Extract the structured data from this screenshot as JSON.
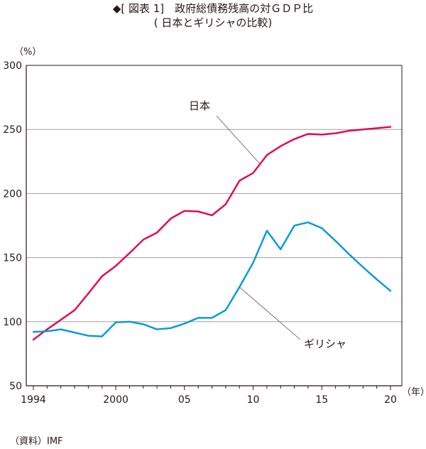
{
  "title": "◆[ 図表 1]　政府総債務残高の対ＧＤＰ比",
  "subtitle": "( 日本とギリシャの比較)",
  "source": "（資料）IMF",
  "chart_data": {
    "type": "line",
    "y_unit": "（%）",
    "x_unit": "（年）",
    "x_tick_labels": [
      "1994",
      "2000",
      "05",
      "10",
      "15",
      "20"
    ],
    "y_tick_labels": [
      "300",
      "250",
      "200",
      "150",
      "100",
      "50"
    ],
    "x_ticks": [
      1994,
      2000,
      2005,
      2010,
      2015,
      2020
    ],
    "y_ticks": [
      300,
      250,
      200,
      150,
      100,
      50
    ],
    "xlim": [
      1994,
      2020
    ],
    "ylim": [
      50,
      300
    ],
    "grid": true,
    "x": [
      1994,
      1995,
      1996,
      1997,
      1998,
      1999,
      2000,
      2001,
      2002,
      2003,
      2004,
      2005,
      2006,
      2007,
      2008,
      2009,
      2010,
      2011,
      2012,
      2013,
      2014,
      2015,
      2016,
      2017,
      2018,
      2019,
      2020
    ],
    "series": [
      {
        "name": "日本",
        "color": "#e5004f",
        "values": [
          86,
          94,
          101.5,
          109,
          122,
          135.5,
          143.5,
          153.5,
          164,
          169.5,
          180.5,
          186.5,
          186,
          183,
          191.5,
          210,
          216,
          230,
          237,
          242.5,
          246.5,
          246,
          247,
          249,
          250,
          251,
          252
        ]
      },
      {
        "name": "ギリシャ",
        "color": "#0098d9",
        "values": [
          92,
          92.5,
          94,
          91.5,
          89,
          88.5,
          99.5,
          100,
          98,
          94,
          95,
          98.5,
          103,
          103,
          109,
          127,
          146,
          171,
          156.5,
          175,
          177.5,
          173,
          163,
          152.5,
          142.5,
          133,
          124
        ]
      }
    ],
    "annotations": [
      {
        "text": "日本",
        "series": "日本"
      },
      {
        "text": "ギリシャ",
        "series": "ギリシャ"
      }
    ]
  }
}
